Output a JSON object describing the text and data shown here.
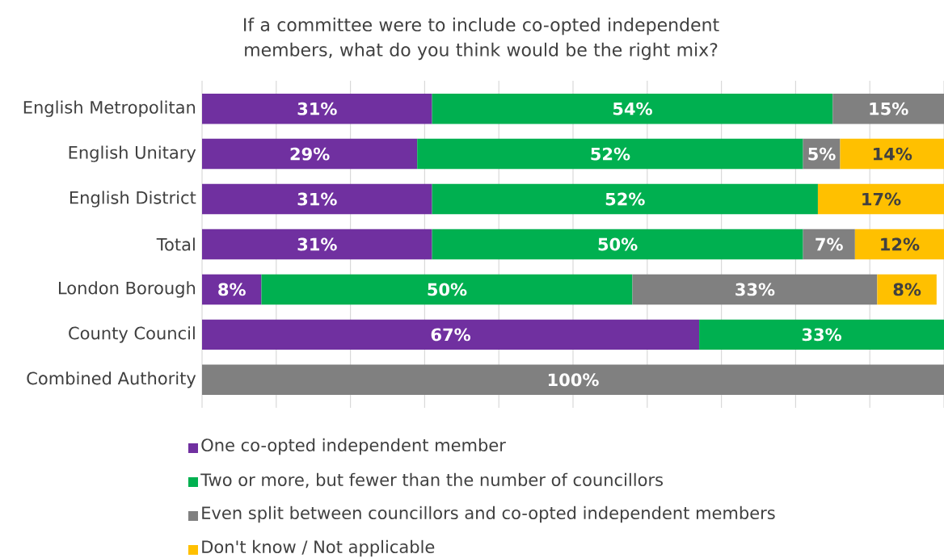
{
  "chart_data": {
    "type": "bar",
    "orientation": "horizontal",
    "stacked": true,
    "title": "If a committee were to include co-opted independent members, what do you think would be the right mix?",
    "categories": [
      "English Metropolitan",
      "English Unitary",
      "English District",
      "Total",
      "London Borough",
      "County Council",
      "Combined Authority"
    ],
    "series": [
      {
        "name": "One co-opted independent member",
        "color": "#7030a0",
        "values": [
          31,
          29,
          31,
          31,
          8,
          67,
          null
        ],
        "value_labels": [
          "31%",
          "29%",
          "31%",
          "31%",
          "8%",
          "67%",
          null
        ]
      },
      {
        "name": "Two or more, but fewer than the number of councillors",
        "color": "#00b050",
        "values": [
          54,
          52,
          52,
          50,
          50,
          33,
          null
        ],
        "value_labels": [
          "54%",
          "52%",
          "52%",
          "50%",
          "50%",
          "33%",
          null
        ]
      },
      {
        "name": "Even split between councillors and co-opted independent members",
        "color": "#808080",
        "values": [
          15,
          5,
          null,
          7,
          33,
          null,
          100
        ],
        "value_labels": [
          "15%",
          "5%",
          null,
          "7%",
          "33%",
          null,
          "100%"
        ]
      },
      {
        "name": "Don't know / Not applicable",
        "color": "#ffc000",
        "values": [
          null,
          14,
          17,
          12,
          8,
          null,
          null
        ],
        "value_labels": [
          null,
          "14%",
          "17%",
          "12%",
          "8%",
          null,
          null
        ]
      }
    ],
    "xlim": [
      0,
      100
    ],
    "xticks": [
      {
        "value": 0,
        "label": null
      },
      {
        "value": 10,
        "label": null
      },
      {
        "value": 20,
        "label": null
      },
      {
        "value": 30,
        "label": null
      },
      {
        "value": 40,
        "label": null
      },
      {
        "value": 50,
        "label": null
      },
      {
        "value": 60,
        "label": null
      },
      {
        "value": 70,
        "label": null
      },
      {
        "value": 80,
        "label": null
      },
      {
        "value": 90,
        "label": null
      },
      {
        "value": 100,
        "label": null
      }
    ],
    "tick_labels": "y",
    "grid": "x",
    "legend": "bottom"
  }
}
